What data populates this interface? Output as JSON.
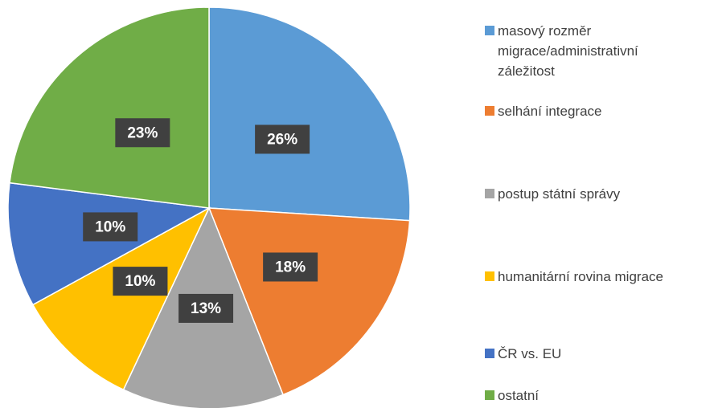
{
  "chart_data": {
    "type": "pie",
    "categories": [
      "masový rozměr migrace/administrativní záležitost",
      "selhání integrace",
      "postup státní správy",
      "humanitární rovina migrace",
      "ČR vs. EU",
      "ostatní"
    ],
    "values": [
      26,
      18,
      13,
      10,
      10,
      23
    ],
    "value_labels": [
      "26%",
      "18%",
      "13%",
      "10%",
      "10%",
      "23%"
    ],
    "colors": [
      "#5b9bd5",
      "#ed7d31",
      "#a5a5a5",
      "#ffc000",
      "#4472c4",
      "#70ad47"
    ],
    "legend": "right"
  }
}
